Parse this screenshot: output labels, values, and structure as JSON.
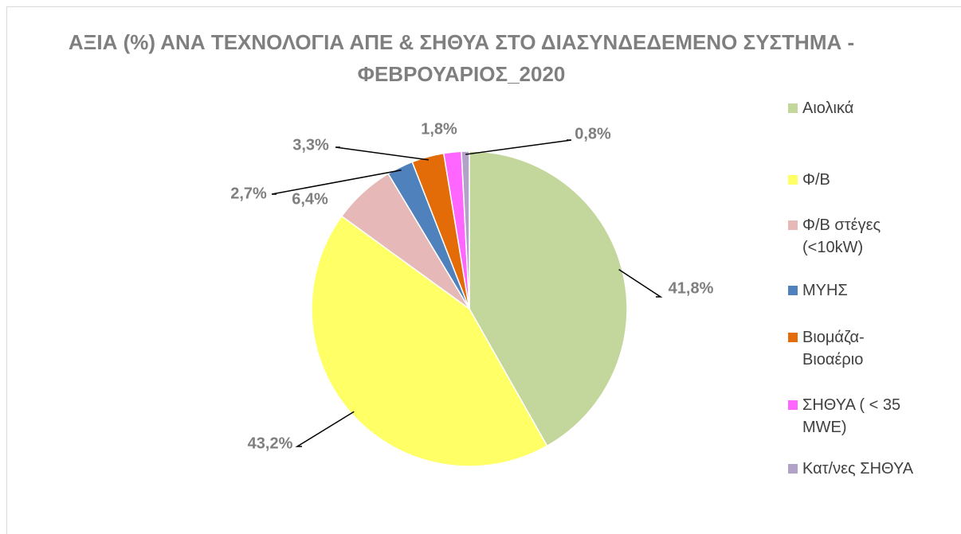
{
  "chart_data": {
    "type": "pie",
    "title": "ΑΞΙΑ (%) ΑΝΑ ΤΕΧΝΟΛΟΓΙΑ ΑΠΕ & ΣΗΘΥΑ  ΣΤΟ ΔΙΑΣΥΝΔΕΔΕΜΕΝΟ ΣΥΣΤΗΜΑ - ΦΕΒΡΟΥΑΡΙΟΣ_2020",
    "categories": [
      "Αιολικά",
      "Φ/Β",
      "Φ/Β στέγες (<10kW)",
      "ΜΥΗΣ",
      "Βιομάζα-Βιοαέριο",
      "ΣΗΘΥΑ ( < 35 MWE)",
      "Κατ/νες ΣΗΘΥΑ"
    ],
    "values": [
      41.8,
      43.2,
      6.4,
      2.7,
      3.3,
      1.8,
      0.8
    ],
    "value_labels": [
      "41,8%",
      "43,2%",
      "6,4%",
      "2,7%",
      "3,3%",
      "1,8%",
      "0,8%"
    ],
    "colors": [
      "#c3d69b",
      "#ffff66",
      "#e6b9b8",
      "#4f81bd",
      "#e36c09",
      "#ff66ff",
      "#b3a2c7"
    ],
    "legend": "right"
  }
}
